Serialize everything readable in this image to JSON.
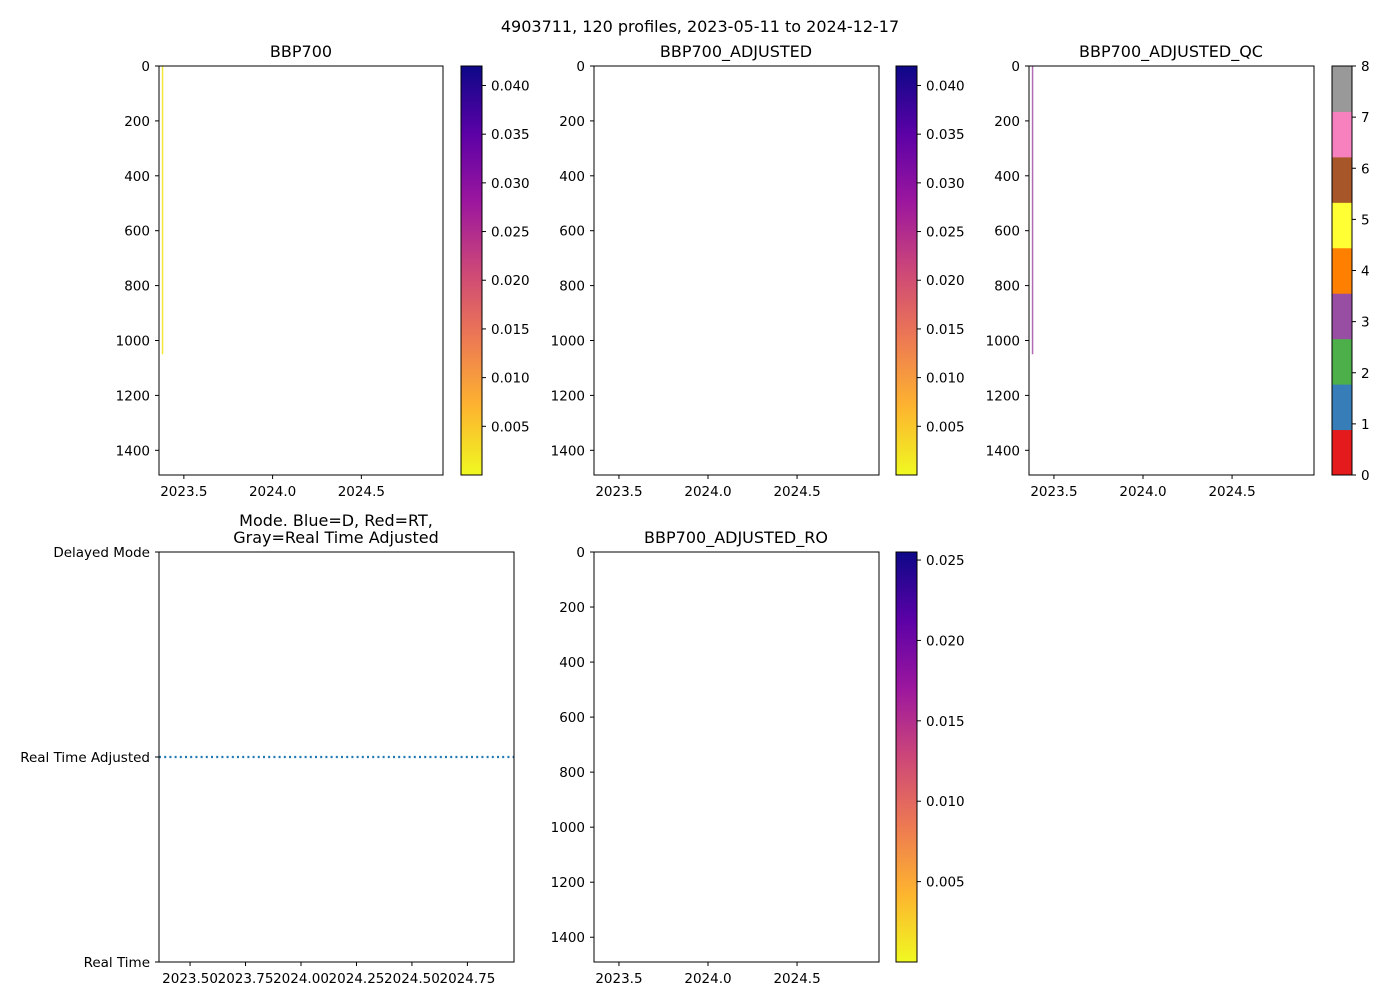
{
  "figure_title": "4903711, 120 profiles, 2023-05-11 to 2024-12-17",
  "colors": {
    "axis": "#000000",
    "background": "#ffffff",
    "mode_line": "#1f77b4",
    "profile_bbp700": "#f3e837",
    "profile_qc": "#b16bb5",
    "plasma": [
      "#f0f921",
      "#fdb42f",
      "#ed7953",
      "#cc4778",
      "#9c179e",
      "#5c01a6",
      "#0d0887"
    ],
    "qc_flags": [
      "#e41a1c",
      "#377eb8",
      "#4daf4a",
      "#984ea3",
      "#ff7f00",
      "#ffff33",
      "#a65628",
      "#f781bf",
      "#999999"
    ]
  },
  "chart_data": [
    {
      "id": "bbp700",
      "type": "heatmap",
      "title": "BBP700",
      "xlim": [
        2023.36,
        2024.96
      ],
      "xticks": [
        2023.5,
        2024.0,
        2024.5
      ],
      "xtick_labels": [
        "2023.5",
        "2024.0",
        "2024.5"
      ],
      "ylim": [
        1490,
        0
      ],
      "yticks": [
        0,
        200,
        400,
        600,
        800,
        1000,
        1200,
        1400
      ],
      "ytick_labels": [
        "0",
        "200",
        "400",
        "600",
        "800",
        "1000",
        "1200",
        "1400"
      ],
      "profiles": [
        {
          "x": 2023.38,
          "depth_from": 0,
          "depth_to": 1050,
          "color_key": "profile_bbp700"
        }
      ],
      "colorbar": {
        "type": "continuous",
        "cmap": "plasma_r",
        "range": [
          0.0,
          0.042
        ],
        "ticks": [
          0.005,
          0.01,
          0.015,
          0.02,
          0.025,
          0.03,
          0.035,
          0.04
        ],
        "tick_labels": [
          "0.005",
          "0.010",
          "0.015",
          "0.020",
          "0.025",
          "0.030",
          "0.035",
          "0.040"
        ]
      }
    },
    {
      "id": "bbp700_adjusted",
      "type": "heatmap",
      "title": "BBP700_ADJUSTED",
      "xlim": [
        2023.36,
        2024.96
      ],
      "xticks": [
        2023.5,
        2024.0,
        2024.5
      ],
      "xtick_labels": [
        "2023.5",
        "2024.0",
        "2024.5"
      ],
      "ylim": [
        1490,
        0
      ],
      "yticks": [
        0,
        200,
        400,
        600,
        800,
        1000,
        1200,
        1400
      ],
      "ytick_labels": [
        "0",
        "200",
        "400",
        "600",
        "800",
        "1000",
        "1200",
        "1400"
      ],
      "profiles": [],
      "colorbar": {
        "type": "continuous",
        "cmap": "plasma_r",
        "range": [
          0.0,
          0.042
        ],
        "ticks": [
          0.005,
          0.01,
          0.015,
          0.02,
          0.025,
          0.03,
          0.035,
          0.04
        ],
        "tick_labels": [
          "0.005",
          "0.010",
          "0.015",
          "0.020",
          "0.025",
          "0.030",
          "0.035",
          "0.040"
        ]
      }
    },
    {
      "id": "bbp700_adjusted_qc",
      "type": "heatmap",
      "title": "BBP700_ADJUSTED_QC",
      "xlim": [
        2023.36,
        2024.96
      ],
      "xticks": [
        2023.5,
        2024.0,
        2024.5
      ],
      "xtick_labels": [
        "2023.5",
        "2024.0",
        "2024.5"
      ],
      "ylim": [
        1490,
        0
      ],
      "yticks": [
        0,
        200,
        400,
        600,
        800,
        1000,
        1200,
        1400
      ],
      "ytick_labels": [
        "0",
        "200",
        "400",
        "600",
        "800",
        "1000",
        "1200",
        "1400"
      ],
      "profiles": [
        {
          "x": 2023.38,
          "depth_from": 0,
          "depth_to": 1050,
          "color_key": "profile_qc"
        }
      ],
      "colorbar": {
        "type": "categorical",
        "range": [
          0,
          8
        ],
        "ticks": [
          0,
          1,
          2,
          3,
          4,
          5,
          6,
          7,
          8
        ],
        "tick_labels": [
          "0",
          "1",
          "2",
          "3",
          "4",
          "5",
          "6",
          "7",
          "8"
        ]
      }
    },
    {
      "id": "mode",
      "type": "line",
      "title_lines": [
        "Mode. Blue=D, Red=RT,",
        "Gray=Real Time Adjusted"
      ],
      "xlim": [
        2023.36,
        2024.96
      ],
      "xticks": [
        2023.5,
        2023.75,
        2024.0,
        2024.25,
        2024.5,
        2024.75
      ],
      "xtick_labels": [
        "2023.50",
        "2023.75",
        "2024.00",
        "2024.25",
        "2024.50",
        "2024.75"
      ],
      "ylim": [
        0,
        2
      ],
      "yticks": [
        0,
        1,
        2
      ],
      "ytick_labels": [
        "Real Time",
        "Real Time Adjusted",
        "Delayed Mode"
      ],
      "series": [
        {
          "name": "mode",
          "x_range": [
            2023.36,
            2024.96
          ],
          "y": 1,
          "style": "dotted"
        }
      ]
    },
    {
      "id": "bbp700_adjusted_ro",
      "type": "heatmap",
      "title": "BBP700_ADJUSTED_RO",
      "xlim": [
        2023.36,
        2024.96
      ],
      "xticks": [
        2023.5,
        2024.0,
        2024.5
      ],
      "xtick_labels": [
        "2023.5",
        "2024.0",
        "2024.5"
      ],
      "ylim": [
        1490,
        0
      ],
      "yticks": [
        0,
        200,
        400,
        600,
        800,
        1000,
        1200,
        1400
      ],
      "ytick_labels": [
        "0",
        "200",
        "400",
        "600",
        "800",
        "1000",
        "1200",
        "1400"
      ],
      "profiles": [],
      "colorbar": {
        "type": "continuous",
        "cmap": "plasma_r",
        "range": [
          0.0,
          0.0255
        ],
        "ticks": [
          0.005,
          0.01,
          0.015,
          0.02,
          0.025
        ],
        "tick_labels": [
          "0.005",
          "0.010",
          "0.015",
          "0.020",
          "0.025"
        ]
      }
    }
  ]
}
